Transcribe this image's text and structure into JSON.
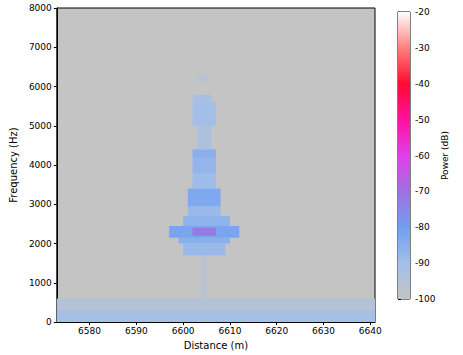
{
  "chart_data": {
    "type": "heatmap",
    "x_label": "Distance (m)",
    "y_label": "Frequency (Hz)",
    "xlim": [
      6573,
      6641
    ],
    "ylim": [
      0,
      8000
    ],
    "xticks": [
      6580,
      6590,
      6600,
      6610,
      6620,
      6630,
      6640
    ],
    "yticks": [
      0,
      1000,
      2000,
      3000,
      4000,
      5000,
      6000,
      7000,
      8000
    ],
    "grid": false,
    "colorbar": {
      "label": "Power (dB)",
      "range": [
        -100,
        -20
      ],
      "ticks": [
        -100,
        -90,
        -80,
        -70,
        -60,
        -50,
        -40,
        -30,
        -20
      ]
    },
    "cells": [
      [
        6573,
        6641,
        0,
        300,
        -91
      ],
      [
        6573,
        6641,
        300,
        600,
        -95
      ],
      [
        6604,
        6605,
        600,
        1700,
        -96
      ],
      [
        6600,
        6609,
        1700,
        2000,
        -88
      ],
      [
        6599,
        6610,
        2000,
        2150,
        -85
      ],
      [
        6597,
        6612,
        2150,
        2450,
        -82
      ],
      [
        6600,
        6610,
        2450,
        2700,
        -86
      ],
      [
        6601,
        6608,
        2700,
        2950,
        -88
      ],
      [
        6601,
        6608,
        2950,
        3400,
        -83
      ],
      [
        6602,
        6607,
        3400,
        3800,
        -89
      ],
      [
        6602,
        6607,
        3800,
        4200,
        -87
      ],
      [
        6602,
        6607,
        4200,
        4400,
        -85
      ],
      [
        6603,
        6606,
        4400,
        5000,
        -93
      ],
      [
        6602,
        6607,
        5000,
        5600,
        -90
      ],
      [
        6602,
        6606,
        5600,
        5800,
        -92
      ],
      [
        6603,
        6605,
        6100,
        6300,
        -96
      ],
      [
        6602,
        6607,
        2200,
        2400,
        -72
      ]
    ]
  }
}
